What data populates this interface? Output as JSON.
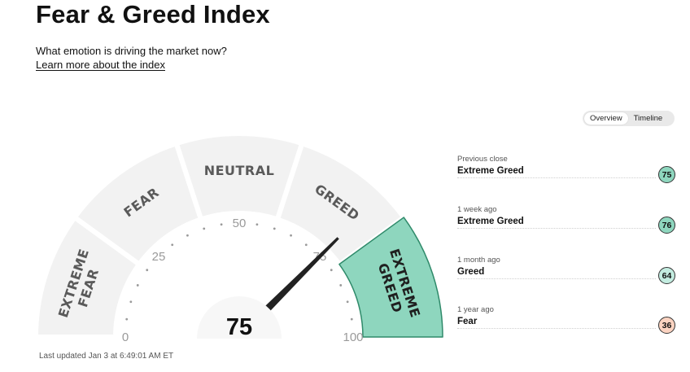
{
  "page": {
    "title": "Fear & Greed Index",
    "subtitle": "What emotion is driving the market now?",
    "learn_more": "Learn more about the index",
    "last_updated": "Last updated Jan 3 at 6:49:01 AM ET"
  },
  "gauge": {
    "value": 75,
    "value_text": "75",
    "active_segment": "extreme-greed",
    "segments": [
      {
        "id": "extreme-fear",
        "lines": [
          "EXTREME",
          "FEAR"
        ]
      },
      {
        "id": "fear",
        "lines": [
          "FEAR"
        ]
      },
      {
        "id": "neutral",
        "lines": [
          "NEUTRAL"
        ]
      },
      {
        "id": "greed",
        "lines": [
          "GREED"
        ]
      },
      {
        "id": "extreme-greed",
        "lines": [
          "EXTREME",
          "GREED"
        ]
      }
    ],
    "scale_labels": [
      "0",
      "25",
      "50",
      "75",
      "100"
    ],
    "colors": {
      "segment": "#f2f2f2",
      "active_fill": "#8ed6be",
      "active_stroke": "#2f8a6a",
      "needle": "#222222"
    }
  },
  "toggle": {
    "overview": "Overview",
    "timeline": "Timeline",
    "selected": "Overview"
  },
  "history": [
    {
      "when": "Previous close",
      "rating": "Extreme Greed",
      "value": "75",
      "color": "#8ed6be"
    },
    {
      "when": "1 week ago",
      "rating": "Extreme Greed",
      "value": "76",
      "color": "#8ed6be"
    },
    {
      "when": "1 month ago",
      "rating": "Greed",
      "value": "64",
      "color": "#c3ece0"
    },
    {
      "when": "1 year ago",
      "rating": "Fear",
      "value": "36",
      "color": "#fbd3c1"
    }
  ]
}
